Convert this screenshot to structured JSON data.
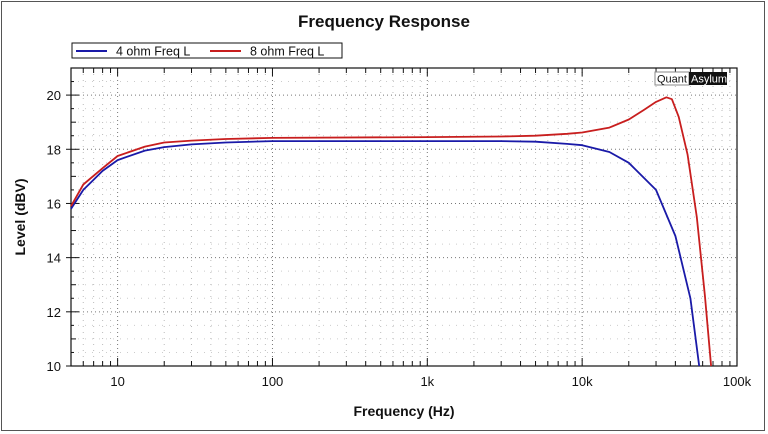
{
  "chart_data": {
    "type": "line",
    "title": "Frequency Response",
    "xlabel": "Frequency (Hz)",
    "ylabel": "Level (dBV)",
    "xscale": "log",
    "xlim": [
      5,
      100000
    ],
    "ylim": [
      10,
      21
    ],
    "xticks": [
      {
        "v": 10,
        "label": "10"
      },
      {
        "v": 100,
        "label": "100"
      },
      {
        "v": 1000,
        "label": "1k"
      },
      {
        "v": 10000,
        "label": "10k"
      },
      {
        "v": 100000,
        "label": "100k"
      }
    ],
    "yticks": [
      10,
      12,
      14,
      16,
      18,
      20
    ],
    "grid": true,
    "legend_position": "top-left-outside",
    "watermark": "QuantAsylum",
    "series": [
      {
        "name": "4 ohm Freq L",
        "color": "#1a1aa8",
        "x": [
          5,
          6,
          8,
          10,
          15,
          20,
          30,
          50,
          100,
          1000,
          3000,
          5000,
          8000,
          10000,
          15000,
          20000,
          30000,
          40000,
          50000,
          57000
        ],
        "y": [
          15.8,
          16.5,
          17.2,
          17.6,
          17.95,
          18.08,
          18.18,
          18.25,
          18.3,
          18.3,
          18.3,
          18.28,
          18.2,
          18.15,
          17.9,
          17.5,
          16.5,
          14.8,
          12.5,
          10.0
        ]
      },
      {
        "name": "8 ohm Freq L",
        "color": "#c81e1e",
        "x": [
          5,
          6,
          8,
          10,
          15,
          20,
          30,
          50,
          100,
          1000,
          3000,
          5000,
          8000,
          10000,
          15000,
          20000,
          25000,
          30000,
          35000,
          38000,
          42000,
          48000,
          55000,
          62000,
          68000
        ],
        "y": [
          15.9,
          16.7,
          17.3,
          17.75,
          18.1,
          18.25,
          18.32,
          18.38,
          18.42,
          18.45,
          18.47,
          18.5,
          18.57,
          18.62,
          18.8,
          19.1,
          19.45,
          19.75,
          19.92,
          19.85,
          19.2,
          17.8,
          15.5,
          12.6,
          10.0
        ]
      }
    ]
  }
}
